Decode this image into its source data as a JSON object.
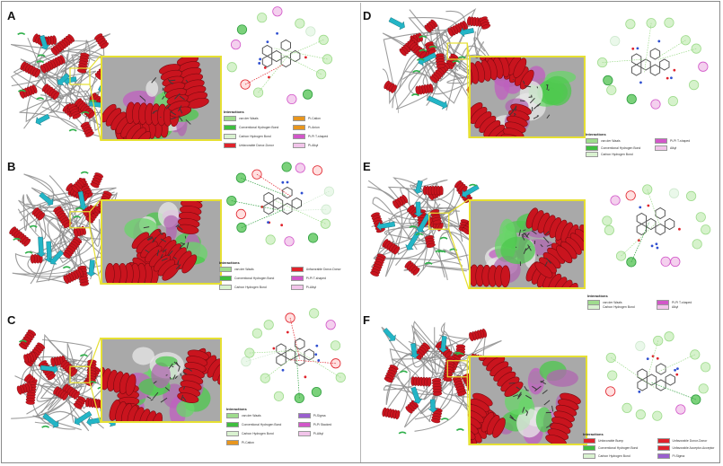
{
  "figure": {
    "panels": [
      {
        "id": "A",
        "label": "A",
        "legend": {
          "title": "Interactions",
          "items": [
            {
              "text": "van der Waals",
              "color": "#9fdc8d"
            },
            {
              "text": "Conventional Hydrogen Bond",
              "color": "#3fbf3f"
            },
            {
              "text": "Carbon Hydrogen Bond",
              "color": "#d9f2d0"
            },
            {
              "text": "Unfavorable Donor-Donor",
              "color": "#e0222b"
            },
            {
              "text": "Pi-Cation",
              "color": "#e8961e"
            },
            {
              "text": "Pi-Anion",
              "color": "#e8961e"
            },
            {
              "text": "Pi-Pi T-shaped",
              "color": "#d257c9"
            },
            {
              "text": "Pi-Alkyl",
              "color": "#f2c4ea"
            }
          ]
        }
      },
      {
        "id": "B",
        "label": "B",
        "legend": {
          "title": "Interactions",
          "items": [
            {
              "text": "van der Waals",
              "color": "#9fdc8d"
            },
            {
              "text": "Conventional Hydrogen Bond",
              "color": "#3fbf3f"
            },
            {
              "text": "Carbon Hydrogen Bond",
              "color": "#d9f2d0"
            },
            {
              "text": "Unfavorable Donor-Donor",
              "color": "#e0222b"
            },
            {
              "text": "Pi-Pi T-shaped",
              "color": "#d257c9"
            },
            {
              "text": "Pi-Alkyl",
              "color": "#f2c4ea"
            }
          ]
        }
      },
      {
        "id": "C",
        "label": "C",
        "legend": {
          "title": "Interactions",
          "items": [
            {
              "text": "van der Waals",
              "color": "#9fdc8d"
            },
            {
              "text": "Conventional Hydrogen Bond",
              "color": "#3fbf3f"
            },
            {
              "text": "Carbon Hydrogen Bond",
              "color": "#d9f2d0"
            },
            {
              "text": "Pi-Cation",
              "color": "#e8961e"
            },
            {
              "text": "Pi-Sigma",
              "color": "#9a5fcf"
            },
            {
              "text": "Pi-Pi Stacked",
              "color": "#d257c9"
            },
            {
              "text": "Pi-Alkyl",
              "color": "#f2c4ea"
            }
          ]
        }
      },
      {
        "id": "D",
        "label": "D",
        "legend": {
          "title": "Interactions",
          "items": [
            {
              "text": "van der Waals",
              "color": "#9fdc8d"
            },
            {
              "text": "Conventional Hydrogen Bond",
              "color": "#3fbf3f"
            },
            {
              "text": "Carbon Hydrogen Bond",
              "color": "#d9f2d0"
            },
            {
              "text": "Pi-Pi T-shaped",
              "color": "#d257c9"
            },
            {
              "text": "Alkyl",
              "color": "#f2c4ea"
            }
          ]
        }
      },
      {
        "id": "E",
        "label": "E",
        "legend": {
          "title": "Interactions",
          "items": [
            {
              "text": "van der Waals",
              "color": "#9fdc8d"
            },
            {
              "text": "Carbon Hydrogen Bond",
              "color": "#d9f2d0"
            },
            {
              "text": "Pi-Pi T-shaped",
              "color": "#d257c9"
            },
            {
              "text": "Alkyl",
              "color": "#f2c4ea"
            }
          ]
        }
      },
      {
        "id": "F",
        "label": "F",
        "legend": {
          "title": "Interactions",
          "items": [
            {
              "text": "Unfavorable Bump",
              "color": "#e0222b"
            },
            {
              "text": "Conventional Hydrogen Bond",
              "color": "#3fbf3f"
            },
            {
              "text": "Carbon Hydrogen Bond",
              "color": "#d9f2d0"
            },
            {
              "text": "Unfavorable Donor-Donor",
              "color": "#e0222b"
            },
            {
              "text": "Unfavorable Acceptor-Acceptor",
              "color": "#e0222b"
            },
            {
              "text": "Pi-Sigma",
              "color": "#9a5fcf"
            }
          ]
        }
      }
    ]
  }
}
